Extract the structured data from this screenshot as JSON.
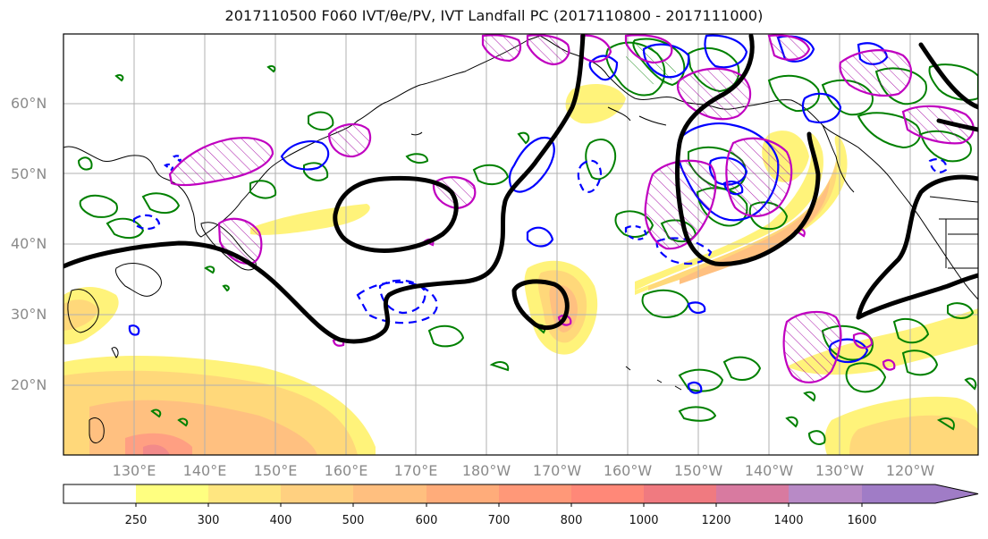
{
  "title": "2017110500 F060 IVT/θe/PV, IVT Landfall PC (2017110800 - 2017111000)",
  "lat_labels": [
    "60°N",
    "50°N",
    "40°N",
    "30°N",
    "20°N"
  ],
  "lon_labels": [
    "130°E",
    "140°E",
    "150°E",
    "160°E",
    "170°E",
    "180°W",
    "170°W",
    "160°W",
    "150°W",
    "140°W",
    "130°W",
    "120°W"
  ],
  "colorbar": {
    "ticks": [
      "250",
      "300",
      "400",
      "500",
      "600",
      "700",
      "800",
      "1000",
      "1200",
      "1400",
      "1600"
    ],
    "colors": [
      "#ffffff",
      "#ffff80",
      "#ffe680",
      "#ffd080",
      "#ffbf7f",
      "#ffac7a",
      "#ff9878",
      "#ff8878",
      "#f07a80",
      "#d87aa0",
      "#b88ac6",
      "#a07cc6"
    ]
  },
  "legend_colors": {
    "theta_e": "#000000",
    "pv_blue": "#0000ff",
    "pv_magenta": "#c000c0",
    "green": "#008000"
  }
}
